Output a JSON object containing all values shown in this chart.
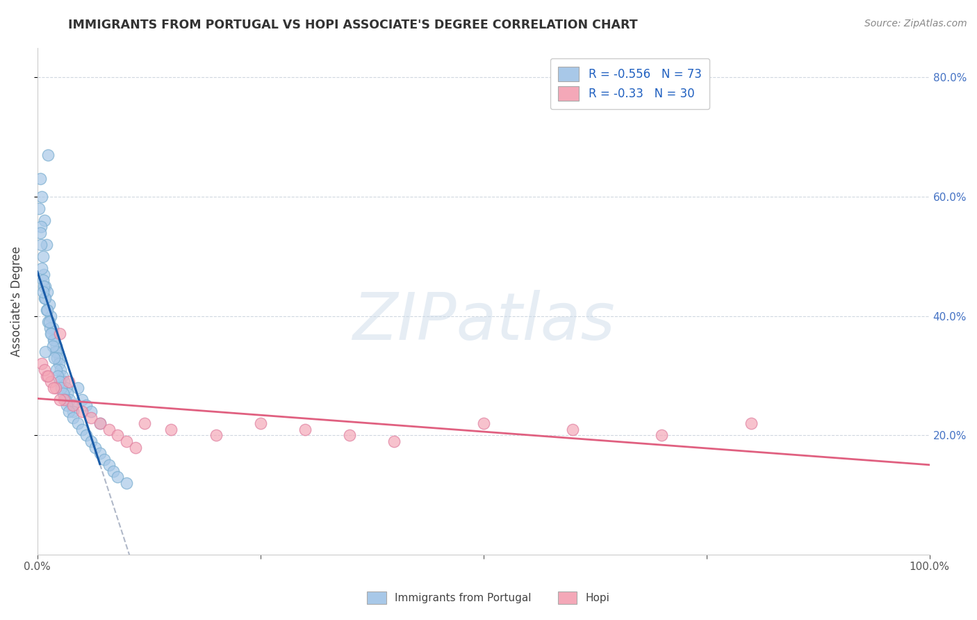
{
  "title": "IMMIGRANTS FROM PORTUGAL VS HOPI ASSOCIATE'S DEGREE CORRELATION CHART",
  "source": "Source: ZipAtlas.com",
  "ylabel": "Associate's Degree",
  "legend_label1": "Immigrants from Portugal",
  "legend_label2": "Hopi",
  "R1": -0.556,
  "N1": 73,
  "R2": -0.33,
  "N2": 30,
  "blue_color": "#a8c8e8",
  "blue_edge_color": "#7aaed0",
  "pink_color": "#f4a8b8",
  "pink_edge_color": "#e080a0",
  "blue_line_color": "#1a5ca8",
  "pink_line_color": "#e06080",
  "watermark": "ZIPatlas",
  "background_color": "#ffffff",
  "grid_color": "#d0d8e0",
  "xlim": [
    0,
    100
  ],
  "ylim_pct": [
    0,
    85
  ],
  "yticks_pct": [
    20,
    40,
    60,
    80
  ],
  "blue_x": [
    1.2,
    0.5,
    0.8,
    1.0,
    0.6,
    0.3,
    0.4,
    0.7,
    0.9,
    1.1,
    1.3,
    1.5,
    1.7,
    1.9,
    2.1,
    2.3,
    2.5,
    0.2,
    0.4,
    0.6,
    0.8,
    1.0,
    1.2,
    1.4,
    1.6,
    1.8,
    2.0,
    2.2,
    2.4,
    2.6,
    2.8,
    3.0,
    3.2,
    3.4,
    3.6,
    3.8,
    4.0,
    4.5,
    5.0,
    5.5,
    6.0,
    7.0,
    0.5,
    0.7,
    0.9,
    1.1,
    1.3,
    1.5,
    1.7,
    1.9,
    2.1,
    2.3,
    2.5,
    2.7,
    2.9,
    3.1,
    3.3,
    3.5,
    4.0,
    4.5,
    5.0,
    5.5,
    6.0,
    6.5,
    7.0,
    7.5,
    8.0,
    8.5,
    9.0,
    10.0,
    0.3,
    0.6,
    0.9
  ],
  "blue_y": [
    67,
    60,
    56,
    52,
    50,
    63,
    55,
    47,
    45,
    44,
    42,
    40,
    38,
    36,
    35,
    34,
    33,
    58,
    52,
    46,
    43,
    41,
    39,
    38,
    37,
    36,
    34,
    33,
    32,
    31,
    30,
    29,
    28,
    27,
    26,
    25,
    24,
    28,
    26,
    25,
    24,
    22,
    48,
    45,
    43,
    41,
    39,
    37,
    35,
    33,
    31,
    30,
    29,
    28,
    27,
    26,
    25,
    24,
    23,
    22,
    21,
    20,
    19,
    18,
    17,
    16,
    15,
    14,
    13,
    12,
    54,
    44,
    34
  ],
  "pink_x": [
    0.5,
    1.0,
    1.5,
    2.0,
    2.5,
    3.0,
    3.5,
    4.0,
    5.0,
    6.0,
    7.0,
    8.0,
    9.0,
    10.0,
    11.0,
    12.0,
    15.0,
    20.0,
    25.0,
    30.0,
    35.0,
    40.0,
    50.0,
    60.0,
    70.0,
    80.0,
    0.8,
    1.2,
    1.8,
    2.5
  ],
  "pink_y": [
    32,
    30,
    29,
    28,
    37,
    26,
    29,
    25,
    24,
    23,
    22,
    21,
    20,
    19,
    18,
    22,
    21,
    20,
    22,
    21,
    20,
    19,
    22,
    21,
    20,
    22,
    31,
    30,
    28,
    26
  ]
}
